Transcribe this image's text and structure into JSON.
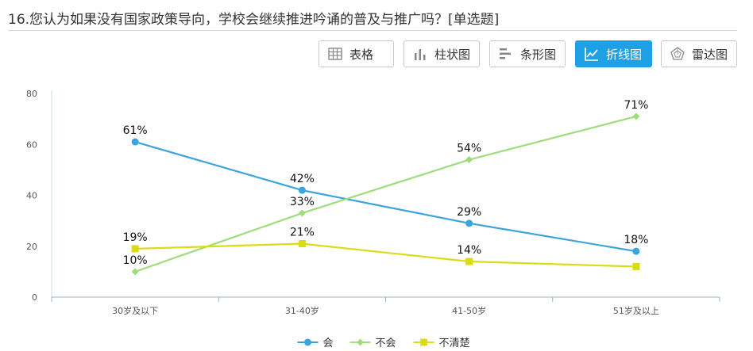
{
  "question": {
    "title": "16.您认为如果没有国家政策导向，学校会继续推进吟诵的普及与推广吗？[单选题]"
  },
  "toolbar": {
    "buttons": [
      {
        "label": "表格",
        "icon": "table-icon",
        "active": false
      },
      {
        "label": "柱状图",
        "icon": "bar-chart-icon",
        "active": false
      },
      {
        "label": "条形图",
        "icon": "horizontal-bar-icon",
        "active": false
      },
      {
        "label": "折线图",
        "icon": "line-chart-icon",
        "active": true
      },
      {
        "label": "雷达图",
        "icon": "radar-chart-icon",
        "active": false
      }
    ]
  },
  "chart_data": {
    "type": "line",
    "categories": [
      "30岁及以下",
      "31-40岁",
      "41-50岁",
      "51岁及以上"
    ],
    "ylim": [
      0,
      80
    ],
    "yticks": [
      0,
      20,
      40,
      60,
      80
    ],
    "legend_position": "bottom",
    "series": [
      {
        "name": "会",
        "values": [
          61,
          42,
          29,
          18
        ],
        "labels": [
          "61%",
          "42%",
          "29%",
          "18%"
        ],
        "color": "#3ba4dc",
        "marker": "circle"
      },
      {
        "name": "不会",
        "values": [
          10,
          33,
          54,
          71
        ],
        "labels": [
          "10%",
          "33%",
          "54%",
          "71%"
        ],
        "color": "#9edc7c",
        "marker": "diamond"
      },
      {
        "name": "不清楚",
        "values": [
          19,
          21,
          14,
          12
        ],
        "labels": [
          "19%",
          "21%",
          "14%",
          ""
        ],
        "color": "#d9dc17",
        "marker": "square"
      }
    ]
  }
}
